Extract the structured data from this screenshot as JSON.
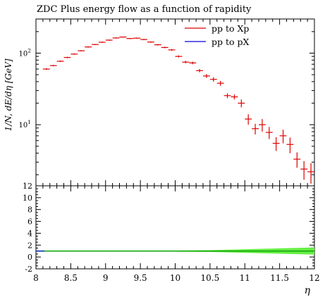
{
  "chart_data": {
    "type": "scatter",
    "title": "ZDC Plus energy flow as a function of rapidity",
    "xlabel": "η",
    "ylabel": "1/N, dE/dη [GeV]",
    "xlim": [
      8,
      12
    ],
    "ylim": [
      1.4,
      300
    ],
    "yscale": "log",
    "grid": false,
    "legend_position": "top-right",
    "x_ticks": [
      "8",
      "8.5",
      "9",
      "9.5",
      "10",
      "10.5",
      "11",
      "11.5",
      "12"
    ],
    "y_ticks": [
      {
        "mantissa": "10",
        "exp": "2",
        "value": 100
      },
      {
        "mantissa": "10",
        "exp": "1",
        "value": 10
      }
    ],
    "series": [
      {
        "name": "pp to Xp",
        "color": "#dd0000",
        "bin_width": 0.1,
        "x": [
          8.15,
          8.25,
          8.35,
          8.45,
          8.55,
          8.65,
          8.75,
          8.85,
          8.95,
          9.05,
          9.15,
          9.25,
          9.35,
          9.45,
          9.55,
          9.65,
          9.75,
          9.85,
          9.95,
          10.05,
          10.15,
          10.25,
          10.35,
          10.45,
          10.55,
          10.65,
          10.75,
          10.85,
          10.95,
          11.05,
          11.15,
          11.25,
          11.35,
          11.45,
          11.55,
          11.65,
          11.75,
          11.85,
          11.95
        ],
        "y": [
          60,
          67,
          77,
          87,
          97,
          108,
          122,
          132,
          142,
          152,
          163,
          168,
          160,
          162,
          155,
          143,
          131,
          120,
          111,
          90,
          75,
          73,
          57,
          48,
          43,
          38,
          25.5,
          24.5,
          20,
          12,
          8.8,
          10,
          7.8,
          5.5,
          7,
          5.3,
          3.3,
          2.4,
          2.2
        ],
        "y_err": [
          1.5,
          1.5,
          1.8,
          2,
          2,
          2,
          2.5,
          2.5,
          3,
          3,
          3,
          3,
          3,
          3,
          3,
          3,
          3,
          3,
          3,
          3,
          3,
          3,
          3,
          3,
          3,
          3,
          2,
          2,
          2.5,
          2,
          1.5,
          2,
          1.5,
          1.2,
          1.5,
          1.3,
          0.8,
          0.7,
          0.7
        ]
      },
      {
        "name": "pp to pX",
        "color": "#0000dd",
        "x": [],
        "y": []
      }
    ],
    "ratio_panel": {
      "ylim": [
        -2,
        12
      ],
      "y_ticks": [
        "12",
        "10",
        "8",
        "6",
        "4",
        "2",
        "0",
        "-2"
      ],
      "reference_value": 1,
      "line_color": "#009900",
      "band_color": "#66ee44",
      "band_x": [
        8,
        9,
        10,
        10.5,
        11,
        11.5,
        12
      ],
      "band_halfwidth": [
        0.1,
        0.1,
        0.1,
        0.15,
        0.3,
        0.45,
        0.6
      ]
    }
  }
}
